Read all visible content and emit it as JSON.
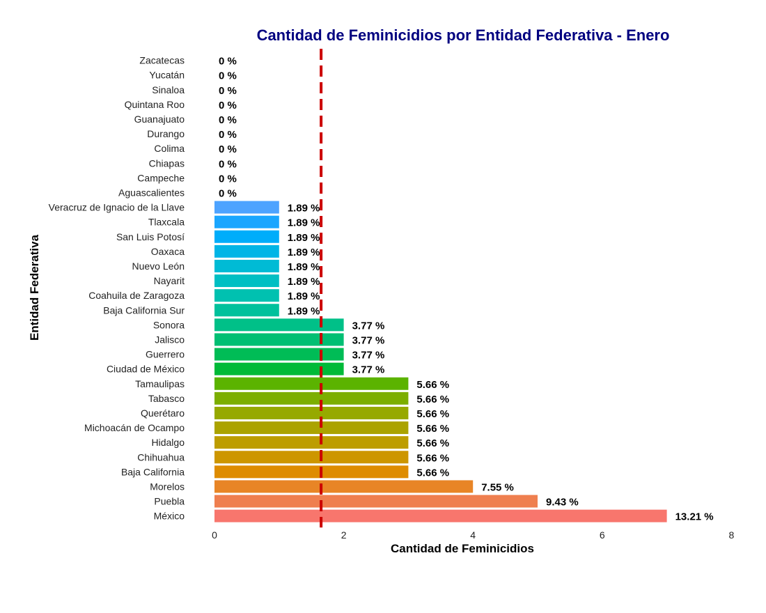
{
  "chart_data": {
    "type": "bar",
    "orientation": "horizontal",
    "title": "Cantidad de Feminicidios por Entidad Federativa - Enero",
    "xlabel": "Cantidad de Feminicidios",
    "ylabel": "Entidad Federativa",
    "xlim": [
      0,
      8
    ],
    "xticks": [
      "0",
      "2",
      "4",
      "6",
      "8"
    ],
    "reference_line": {
      "x": 1.65,
      "style": "dashed",
      "color": "#cc0000"
    },
    "grid": false,
    "title_color": "#000080",
    "categories": [
      "Zacatecas",
      "Yucatán",
      "Sinaloa",
      "Quintana Roo",
      "Guanajuato",
      "Durango",
      "Colima",
      "Chiapas",
      "Campeche",
      "Aguascalientes",
      "Veracruz de Ignacio de la Llave",
      "Tlaxcala",
      "San Luis Potosí",
      "Oaxaca",
      "Nuevo León",
      "Nayarit",
      "Coahuila de Zaragoza",
      "Baja California Sur",
      "Sonora",
      "Jalisco",
      "Guerrero",
      "Ciudad de México",
      "Tamaulipas",
      "Tabasco",
      "Querétaro",
      "Michoacán de Ocampo",
      "Hidalgo",
      "Chihuahua",
      "Baja California",
      "Morelos",
      "Puebla",
      "México"
    ],
    "values": [
      0,
      0,
      0,
      0,
      0,
      0,
      0,
      0,
      0,
      0,
      1,
      1,
      1,
      1,
      1,
      1,
      1,
      1,
      2,
      2,
      2,
      2,
      3,
      3,
      3,
      3,
      3,
      3,
      3,
      4,
      5,
      7
    ],
    "data_labels": [
      "0 %",
      "0 %",
      "0 %",
      "0 %",
      "0 %",
      "0 %",
      "0 %",
      "0 %",
      "0 %",
      "0 %",
      "1.89 %",
      "1.89 %",
      "1.89 %",
      "1.89 %",
      "1.89 %",
      "1.89 %",
      "1.89 %",
      "1.89 %",
      "3.77 %",
      "3.77 %",
      "3.77 %",
      "3.77 %",
      "5.66 %",
      "5.66 %",
      "5.66 %",
      "5.66 %",
      "5.66 %",
      "5.66 %",
      "5.66 %",
      "7.55 %",
      "9.43 %",
      "13.21 %"
    ],
    "colors": [
      "#ff61c3",
      "#ff61c3",
      "#ff61c3",
      "#ff61c3",
      "#ff61c3",
      "#ff61c3",
      "#ff61c3",
      "#ff61c3",
      "#ff61c3",
      "#ff61c3",
      "#4da3ff",
      "#1aa6ff",
      "#00adfa",
      "#00b5e6",
      "#00bbd5",
      "#00bfc3",
      "#00c1b0",
      "#00c19c",
      "#00c088",
      "#00bf73",
      "#00bc56",
      "#00ba38",
      "#5bb300",
      "#7cae00",
      "#96a900",
      "#aba300",
      "#bd9d00",
      "#cd9600",
      "#de8c00",
      "#e88526",
      "#ef7f4f",
      "#f8766d"
    ]
  }
}
